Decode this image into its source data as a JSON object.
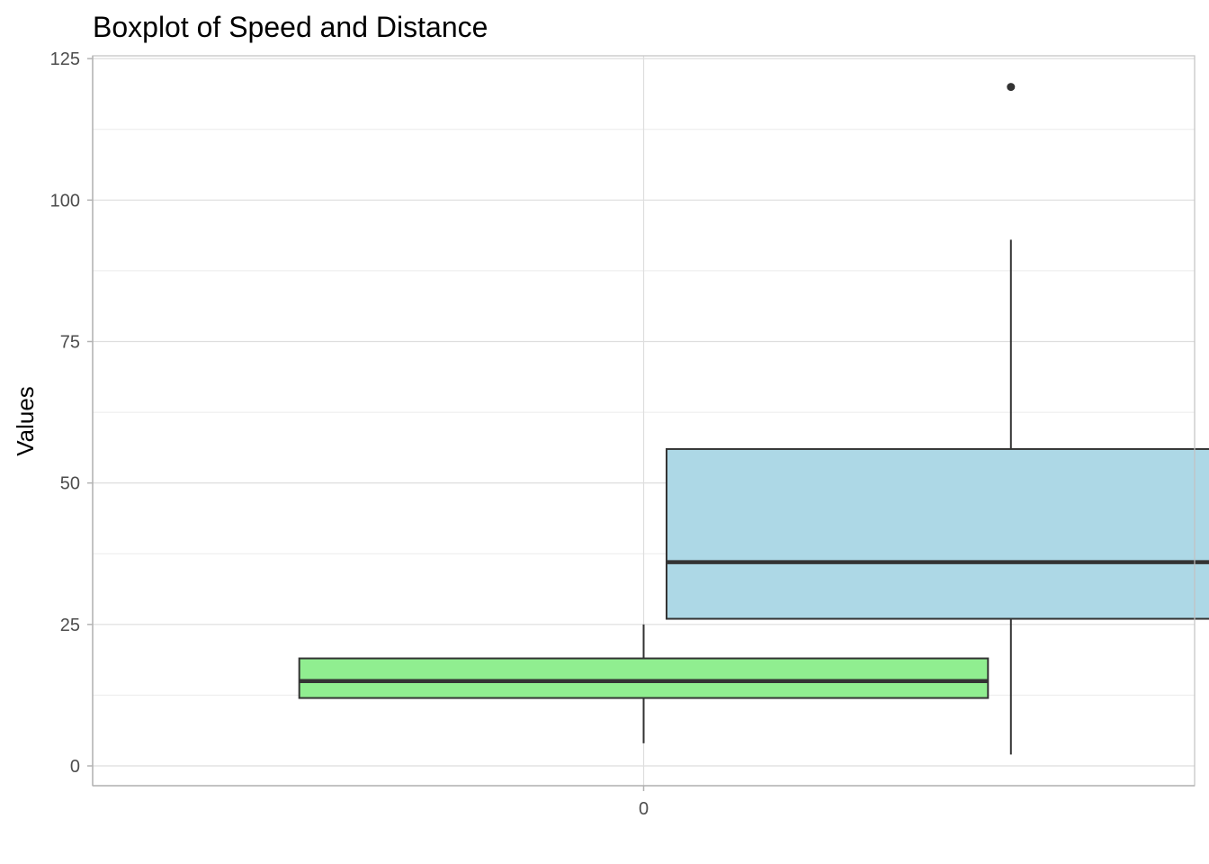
{
  "chart_data": {
    "type": "boxplot",
    "title": "Boxplot of Speed and Distance",
    "xlabel": "",
    "ylabel": "Values",
    "x_tick_labels": [
      "0"
    ],
    "y_tick_labels": [
      "0",
      "25",
      "50",
      "75",
      "100",
      "125"
    ],
    "y_ticks": [
      0,
      25,
      50,
      75,
      100,
      125
    ],
    "ylim": [
      -3.5,
      125.5
    ],
    "xlim": [
      -0.5,
      0.5
    ],
    "grid": true,
    "legend": "none",
    "series": [
      {
        "fill": "#90ee90",
        "x_center": 0,
        "box_width": 0.625,
        "whisker_low": 4,
        "q1": 12,
        "median": 15,
        "q3": 19,
        "whisker_high": 25,
        "outliers": []
      },
      {
        "fill": "#add8e6",
        "x_center": 0.3333,
        "box_width": 0.625,
        "whisker_low": 2,
        "q1": 26,
        "median": 36,
        "q3": 56,
        "whisker_high": 93,
        "outliers": [
          120
        ]
      }
    ]
  }
}
